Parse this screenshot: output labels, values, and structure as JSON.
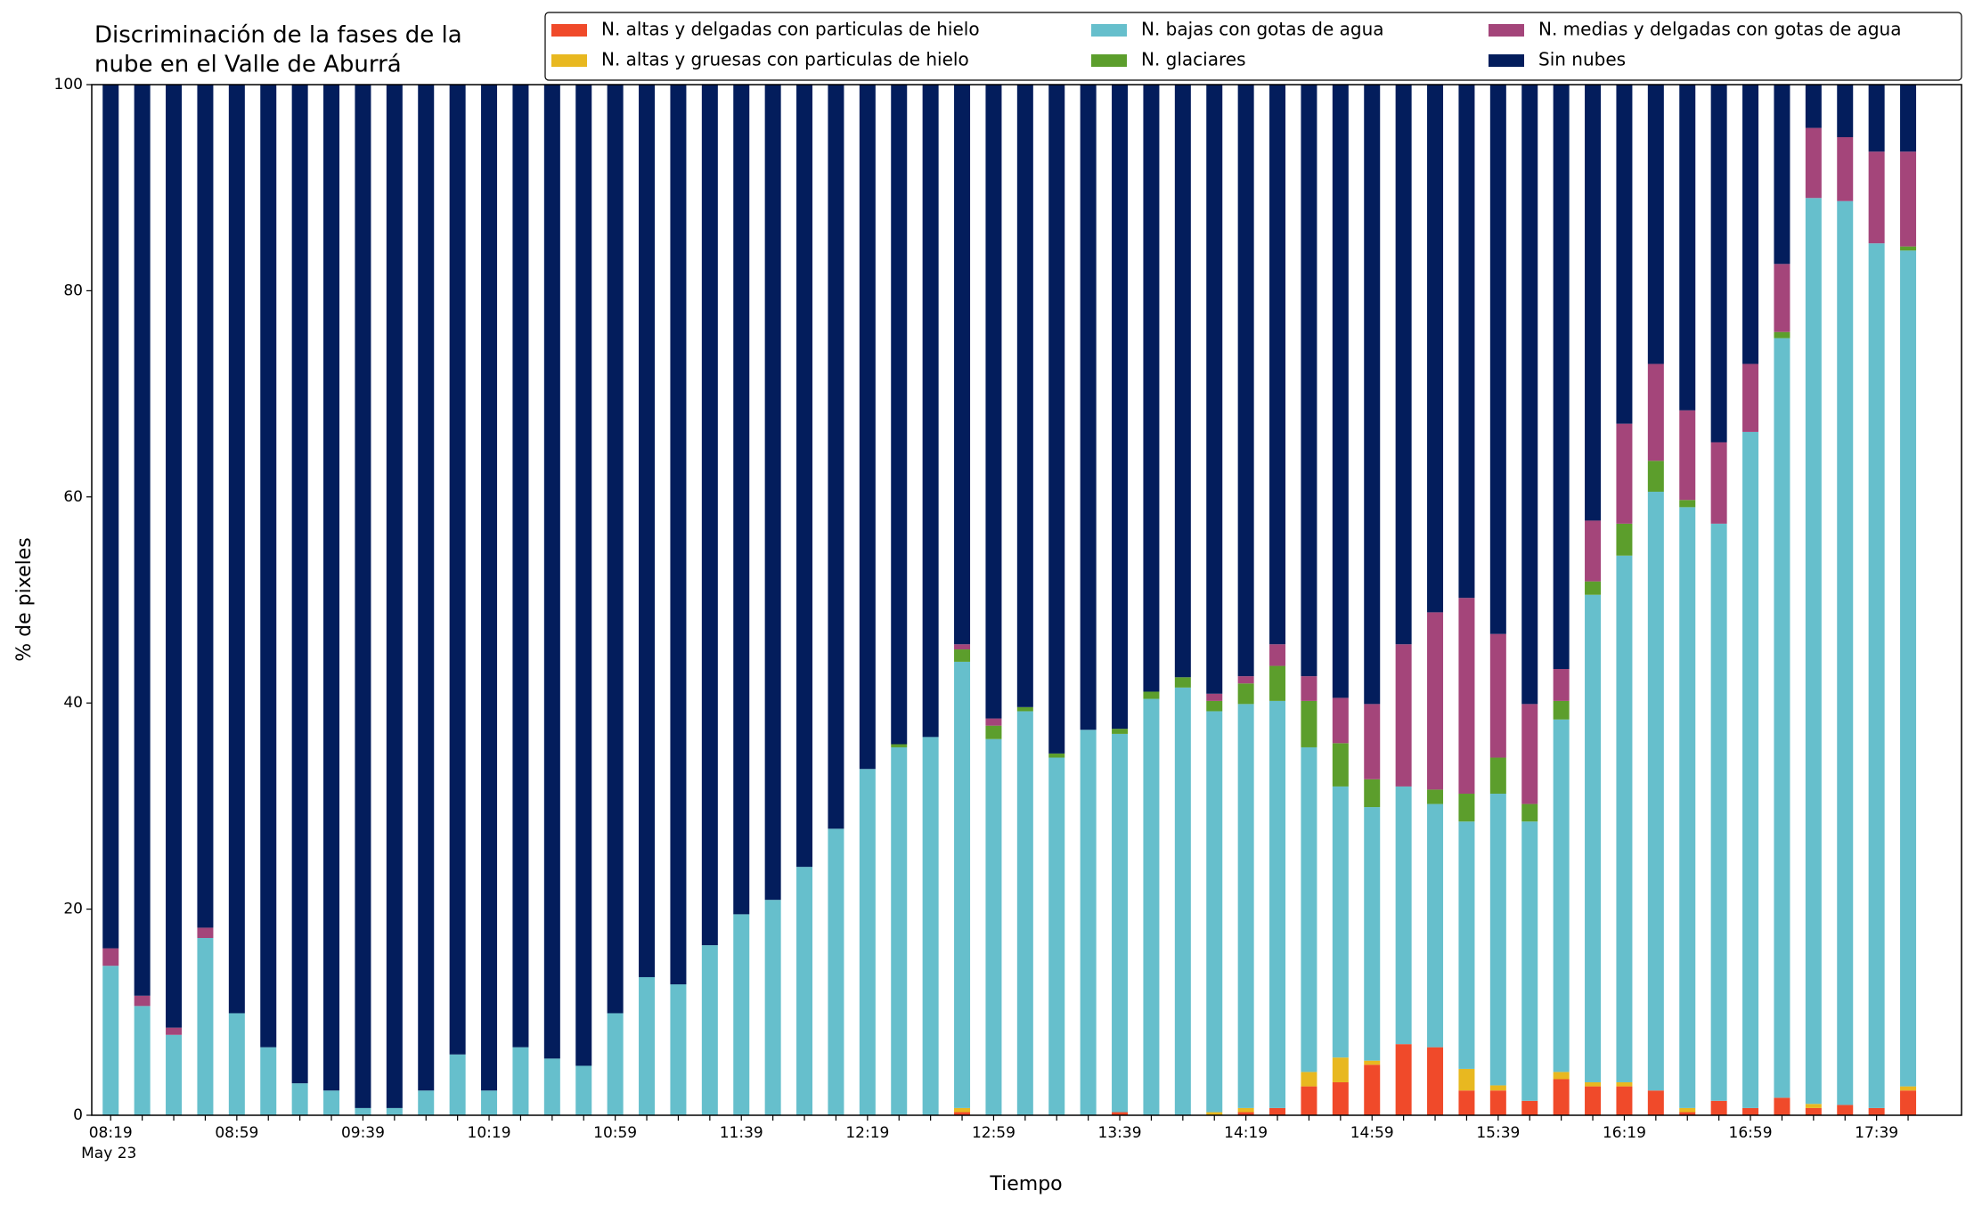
{
  "chart_data": {
    "type": "stacked_bar",
    "title": [
      "Discriminación de la fases de la",
      "nube en el Valle de Aburrá"
    ],
    "x_label": "Tiempo",
    "y_label": "% de pixeles",
    "date_label": "May 23",
    "categories": [
      "08:19",
      null,
      null,
      null,
      "08:59",
      null,
      null,
      null,
      "09:39",
      null,
      null,
      null,
      "10:19",
      null,
      null,
      null,
      "10:59",
      null,
      null,
      null,
      "11:39",
      null,
      null,
      null,
      "12:19",
      null,
      null,
      null,
      "12:59",
      null,
      null,
      null,
      "13:39",
      null,
      null,
      null,
      "14:19",
      null,
      null,
      null,
      "14:59",
      null,
      null,
      null,
      "15:39",
      null,
      null,
      null,
      "16:19",
      null,
      null,
      null,
      "16:59",
      null,
      null,
      null,
      "17:39",
      null
    ],
    "ylim": [
      0,
      100
    ],
    "yticks": [
      0,
      20,
      40,
      60,
      80,
      100
    ],
    "legend": "top-right",
    "series": [
      {
        "name": "N. altas y delgadas con particulas de hielo",
        "color": "#f04a2a",
        "values": [
          0,
          0,
          0,
          0,
          0,
          0,
          0,
          0,
          0,
          0,
          0,
          0,
          0,
          0,
          0,
          0,
          0,
          0,
          0,
          0,
          0,
          0,
          0,
          0,
          0,
          0,
          0,
          0.3,
          0,
          0,
          0,
          0,
          0.3,
          0,
          0,
          0,
          0.3,
          0.7,
          2.8,
          3.2,
          4.9,
          6.9,
          6.6,
          2.4,
          2.4,
          1.4,
          3.5,
          2.8,
          2.8,
          2.4,
          0.3,
          1.4,
          0.7,
          1.7,
          0.7,
          1.0,
          0.7,
          2.4
        ]
      },
      {
        "name": "N. altas y gruesas con particulas de hielo",
        "color": "#e8b820",
        "values": [
          0,
          0,
          0,
          0,
          0,
          0,
          0,
          0,
          0,
          0,
          0,
          0,
          0,
          0,
          0,
          0,
          0,
          0,
          0,
          0,
          0,
          0,
          0,
          0,
          0,
          0,
          0,
          0.4,
          0,
          0,
          0,
          0,
          0,
          0,
          0,
          0.3,
          0.4,
          0,
          1.4,
          2.4,
          0.4,
          0,
          0,
          2.1,
          0.5,
          0,
          0.7,
          0.4,
          0.4,
          0,
          0.4,
          0,
          0,
          0,
          0.4,
          0,
          0,
          0.4
        ]
      },
      {
        "name": "N. bajas con gotas de agua",
        "color": "#66bfcc",
        "values": [
          14.5,
          10.6,
          7.8,
          17.2,
          9.9,
          6.6,
          3.1,
          2.4,
          0.7,
          0.7,
          2.4,
          5.9,
          2.4,
          6.6,
          5.5,
          4.8,
          9.9,
          13.4,
          12.7,
          16.5,
          19.5,
          20.9,
          24.1,
          27.8,
          33.6,
          35.7,
          36.7,
          43.3,
          36.5,
          39.2,
          34.7,
          37.4,
          36.7,
          40.4,
          41.5,
          38.9,
          39.2,
          39.5,
          31.5,
          26.3,
          24.6,
          25.0,
          23.6,
          24.0,
          28.3,
          27.1,
          34.2,
          47.3,
          51.1,
          58.1,
          58.3,
          56.0,
          65.6,
          73.7,
          87.9,
          87.7,
          83.9,
          81.1
        ]
      },
      {
        "name": "N. glaciares",
        "color": "#5c9e2c",
        "values": [
          0,
          0,
          0,
          0,
          0,
          0,
          0,
          0,
          0,
          0,
          0,
          0,
          0,
          0,
          0,
          0,
          0,
          0,
          0,
          0,
          0,
          0,
          0,
          0,
          0,
          0.3,
          0,
          1.2,
          1.3,
          0.4,
          0.4,
          0,
          0.5,
          0.7,
          1.0,
          1.0,
          2.0,
          3.4,
          4.5,
          4.2,
          2.7,
          0,
          1.4,
          2.7,
          3.5,
          1.7,
          1.8,
          1.3,
          3.1,
          3.0,
          0.7,
          0,
          0,
          0.6,
          0,
          0,
          0,
          0.4
        ]
      },
      {
        "name": "N. medias y delgadas con gotas de agua",
        "color": "#a4457a",
        "values": [
          1.7,
          1.0,
          0.7,
          1.0,
          0,
          0,
          0,
          0,
          0,
          0,
          0,
          0,
          0,
          0,
          0,
          0,
          0,
          0,
          0,
          0,
          0,
          0,
          0,
          0,
          0,
          0,
          0,
          0.5,
          0.7,
          0,
          0,
          0,
          0,
          0,
          0,
          0.7,
          0.7,
          2.1,
          2.4,
          4.4,
          7.3,
          13.8,
          17.2,
          19.0,
          12.0,
          9.7,
          3.1,
          5.9,
          9.7,
          9.4,
          8.7,
          7.9,
          6.6,
          6.6,
          6.8,
          6.2,
          8.9,
          9.2
        ]
      },
      {
        "name": "Sin nubes",
        "color": "#031d5c",
        "values": [
          83.8,
          88.4,
          91.5,
          81.8,
          90.1,
          93.4,
          96.9,
          97.6,
          99.3,
          99.3,
          97.6,
          94.1,
          97.6,
          93.4,
          94.5,
          95.2,
          90.1,
          86.6,
          87.3,
          83.5,
          80.5,
          79.1,
          75.9,
          72.2,
          66.4,
          64.0,
          63.3,
          54.3,
          61.5,
          60.4,
          64.9,
          62.6,
          62.5,
          58.9,
          57.5,
          59.1,
          57.4,
          54.3,
          57.4,
          59.5,
          60.1,
          54.3,
          51.2,
          49.8,
          53.3,
          60.1,
          56.7,
          42.3,
          32.9,
          27.1,
          31.6,
          34.7,
          27.1,
          17.4,
          4.2,
          5.1,
          6.5,
          6.5
        ]
      }
    ]
  }
}
